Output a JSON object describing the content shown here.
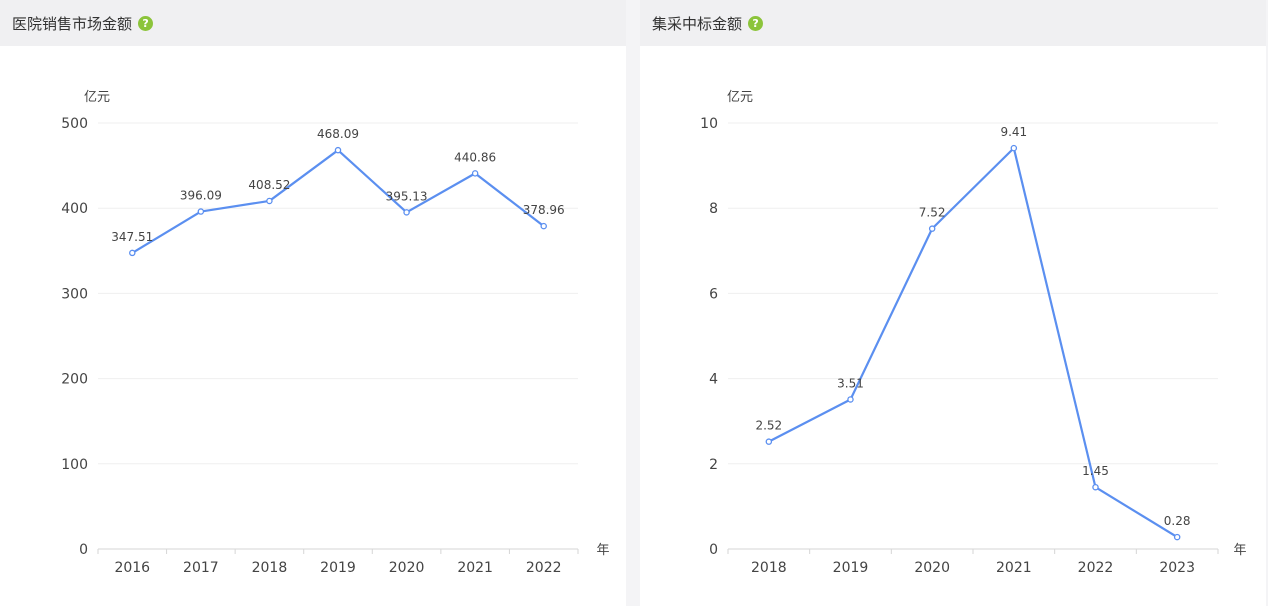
{
  "panels": [
    {
      "title": "医院销售市场金额",
      "help_icon": "question-circle-icon",
      "accent": "#8cc43b"
    },
    {
      "title": "集采中标金额",
      "help_icon": "question-circle-icon",
      "accent": "#8cc43b"
    }
  ],
  "chart_data": [
    {
      "type": "line",
      "ylabel": "亿元",
      "xlabel": "年",
      "categories": [
        "2016",
        "2017",
        "2018",
        "2019",
        "2020",
        "2021",
        "2022"
      ],
      "series": [
        {
          "values": [
            347.51,
            396.09,
            408.52,
            468.09,
            395.13,
            440.86,
            378.96
          ]
        }
      ],
      "data_labels": [
        "347.51",
        "396.09",
        "408.52",
        "468.09",
        "395.13",
        "440.86",
        "378.96"
      ],
      "ylim": [
        0,
        500
      ],
      "yticks": [
        "0",
        "100",
        "200",
        "300",
        "400",
        "500"
      ],
      "grid": true,
      "line_color": "#5b8ff0"
    },
    {
      "type": "line",
      "ylabel": "亿元",
      "xlabel": "年",
      "categories": [
        "2018",
        "2019",
        "2020",
        "2021",
        "2022",
        "2023"
      ],
      "series": [
        {
          "values": [
            2.52,
            3.51,
            7.52,
            9.41,
            1.45,
            0.28
          ]
        }
      ],
      "data_labels": [
        "2.52",
        "3.51",
        "7.52",
        "9.41",
        "1.45",
        "0.28"
      ],
      "ylim": [
        0,
        10
      ],
      "yticks": [
        "0",
        "2",
        "4",
        "6",
        "8",
        "10"
      ],
      "grid": true,
      "line_color": "#5b8ff0"
    }
  ]
}
